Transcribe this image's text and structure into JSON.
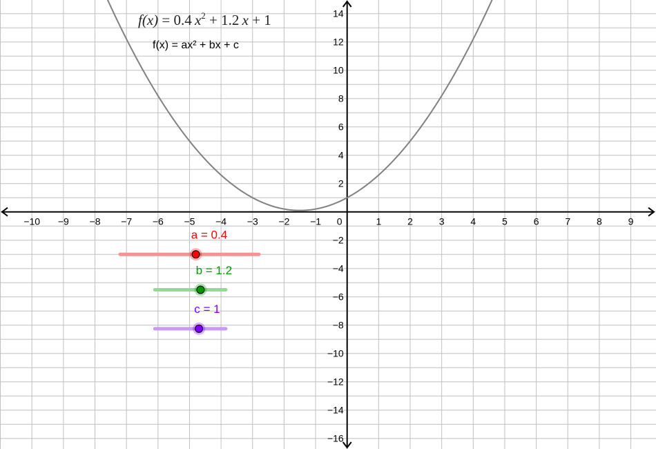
{
  "function": {
    "name": "f",
    "a": 0.4,
    "b": 1.2,
    "c": 1,
    "display_parts": [
      "f(x)",
      "=",
      "0.4",
      "x",
      "2",
      "+",
      "1.2",
      "x",
      "+",
      "1"
    ],
    "generic_text": "f(x) = ax² + bx + c",
    "curve_color": "#808080"
  },
  "axes": {
    "x_range": [
      -11,
      9.78
    ],
    "y_range": [
      -16.75,
      15
    ],
    "x_ticks": [
      "−10",
      "−9",
      "−8",
      "−7",
      "−6",
      "−5",
      "−4",
      "−3",
      "−2",
      "−1",
      "0",
      "1",
      "2",
      "3",
      "4",
      "5",
      "6",
      "7",
      "8",
      "9"
    ],
    "x_tick_values": [
      -10,
      -9,
      -8,
      -7,
      -6,
      -5,
      -4,
      -3,
      -2,
      -1,
      0,
      1,
      2,
      3,
      4,
      5,
      6,
      7,
      8,
      9
    ],
    "y_ticks": [
      "14",
      "12",
      "10",
      "8",
      "6",
      "4",
      "2",
      "−2",
      "−4",
      "−6",
      "−8",
      "−10",
      "−12",
      "−14",
      "−16"
    ],
    "y_tick_values": [
      14,
      12,
      10,
      8,
      6,
      4,
      2,
      -2,
      -4,
      -6,
      -8,
      -10,
      -12,
      -14,
      -16
    ],
    "grid": true,
    "grid_color": "#c0c0c0"
  },
  "sliders": [
    {
      "label": "a = 0.4",
      "color": "#ff0000",
      "track_color": "#f59393",
      "line": [
        -7.2,
        -2.8
      ],
      "point": -4.8,
      "y": -3,
      "label_pos": [
        -4.95,
        -1.6
      ]
    },
    {
      "label": "b = 1.2",
      "color": "#009900",
      "track_color": "#99d699",
      "line": [
        -6.1,
        -3.85
      ],
      "point": -4.65,
      "y": -5.5,
      "label_pos": [
        -4.8,
        -4.1
      ]
    },
    {
      "label": "c = 1",
      "color": "#7f00ff",
      "track_color": "#c999f7",
      "line": [
        -6.1,
        -3.85
      ],
      "point": -4.7,
      "y": -8.25,
      "label_pos": [
        -4.85,
        -6.85
      ]
    }
  ]
}
